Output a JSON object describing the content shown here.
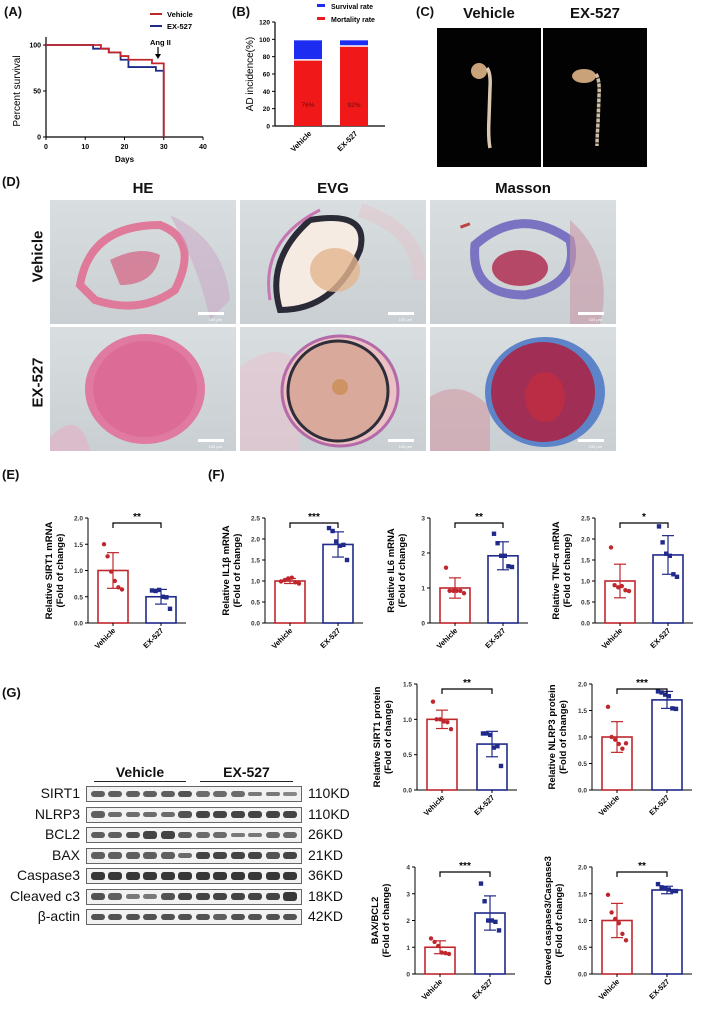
{
  "panels": {
    "A": {
      "label": "(A)"
    },
    "B": {
      "label": "(B)"
    },
    "C": {
      "label": "(C)",
      "headers": [
        "Vehicle",
        "EX-527"
      ]
    },
    "D": {
      "label": "(D)",
      "columns": [
        "HE",
        "EVG",
        "Masson"
      ],
      "rows": [
        "Vehicle",
        "EX-527"
      ],
      "scale_bar_text": "100 μm"
    },
    "E": {
      "label": "(E)"
    },
    "F": {
      "label": "(F)"
    },
    "G": {
      "label": "(G)"
    }
  },
  "colors": {
    "vehicle": "#c0272d",
    "ex527": "#1f2a8a",
    "survival": "#1c2cf0",
    "mortality": "#f01818"
  },
  "western_blot": {
    "groups": [
      "Vehicle",
      "EX-527"
    ],
    "rows": [
      {
        "protein": "SIRT1",
        "kd": "110KD"
      },
      {
        "protein": "NLRP3",
        "kd": "110KD"
      },
      {
        "protein": "BCL2",
        "kd": "26KD"
      },
      {
        "protein": "BAX",
        "kd": "21KD"
      },
      {
        "protein": "Caspase3",
        "kd": "36KD"
      },
      {
        "protein": "Cleaved c3",
        "kd": "18KD"
      },
      {
        "protein": "β-actin",
        "kd": "42KD"
      }
    ]
  },
  "chart_data": [
    {
      "id": "A",
      "type": "line",
      "title": "",
      "xlabel": "Days",
      "ylabel": "Percent survival",
      "xlim": [
        0,
        40
      ],
      "ylim": [
        0,
        100
      ],
      "xticks": [
        0,
        10,
        20,
        30,
        40
      ],
      "yticks": [
        0,
        50,
        100
      ],
      "legend": [
        "Vehicle",
        "EX-527"
      ],
      "annotation": "Ang II",
      "series": [
        {
          "name": "Vehicle",
          "steps": [
            [
              0,
              100
            ],
            [
              14,
              100
            ],
            [
              14,
              96
            ],
            [
              16,
              96
            ],
            [
              16,
              92
            ],
            [
              19,
              92
            ],
            [
              19,
              88
            ],
            [
              21,
              88
            ],
            [
              21,
              84
            ],
            [
              27,
              84
            ],
            [
              27,
              80
            ],
            [
              30,
              80
            ],
            [
              30,
              0
            ]
          ]
        },
        {
          "name": "EX-527",
          "steps": [
            [
              0,
              100
            ],
            [
              12,
              100
            ],
            [
              12,
              96
            ],
            [
              16,
              96
            ],
            [
              16,
              92
            ],
            [
              19,
              92
            ],
            [
              19,
              84
            ],
            [
              21,
              84
            ],
            [
              21,
              76
            ],
            [
              28,
              76
            ],
            [
              28,
              72
            ],
            [
              30,
              72
            ],
            [
              30,
              0
            ]
          ]
        }
      ]
    },
    {
      "id": "B",
      "type": "bar",
      "stacked": true,
      "categories": [
        "Vehicle",
        "EX-527"
      ],
      "ylabel": "AD incidence(%)",
      "ylim": [
        0,
        120
      ],
      "yticks": [
        0,
        20,
        40,
        60,
        80,
        100,
        120
      ],
      "legend": [
        "Survival rate",
        "Mortality rate"
      ],
      "series": [
        {
          "name": "Mortality rate",
          "values": [
            76,
            92
          ],
          "labels": [
            "76%",
            "92%"
          ]
        },
        {
          "name": "Survival rate",
          "values": [
            24,
            8
          ]
        }
      ]
    },
    {
      "id": "E",
      "type": "bar",
      "ylabel": "Relative SIRT1 mRNA\n(Fold of change)",
      "categories": [
        "Vehicle",
        "EX-527"
      ],
      "ylim": [
        0,
        2.0
      ],
      "yticks": [
        0,
        0.5,
        1.0,
        1.5,
        2.0
      ],
      "ytick_labels": [
        "0.0",
        "0.5",
        "1.0",
        "1.5",
        "2.0"
      ],
      "means": [
        1.0,
        0.5
      ],
      "sd": [
        0.34,
        0.14
      ],
      "significance": "**",
      "points": [
        [
          1.5,
          1.27,
          0.98,
          0.8,
          0.68,
          0.64
        ],
        [
          0.62,
          0.61,
          0.63,
          0.5,
          0.49,
          0.27
        ]
      ]
    },
    {
      "id": "F1",
      "type": "bar",
      "ylabel": "Relative IL1β mRNA\n(Fold of change)",
      "categories": [
        "Vehicle",
        "EX-527"
      ],
      "ylim": [
        0,
        2.5
      ],
      "yticks": [
        0,
        0.5,
        1.0,
        1.5,
        2.0,
        2.5
      ],
      "ytick_labels": [
        "0.0",
        "0.5",
        "1.0",
        "1.5",
        "2.0",
        "2.5"
      ],
      "means": [
        1.0,
        1.87
      ],
      "sd": [
        0.06,
        0.3
      ],
      "significance": "***",
      "points": [
        [
          0.99,
          1.02,
          1.06,
          1.08,
          0.97,
          0.94
        ],
        [
          2.26,
          2.19,
          1.94,
          1.84,
          1.86,
          1.5
        ]
      ]
    },
    {
      "id": "F2",
      "type": "bar",
      "ylabel": "Relative IL6 mRNA\n(Fold of change)",
      "categories": [
        "Vehicle",
        "EX-527"
      ],
      "ylim": [
        0,
        3
      ],
      "yticks": [
        0,
        1,
        2,
        3
      ],
      "ytick_labels": [
        "0",
        "1",
        "2",
        "3"
      ],
      "means": [
        1.0,
        1.92
      ],
      "sd": [
        0.29,
        0.4
      ],
      "significance": "**",
      "points": [
        [
          1.58,
          0.92,
          0.92,
          0.92,
          0.92,
          0.85
        ],
        [
          2.55,
          2.28,
          1.92,
          1.92,
          1.62,
          1.6
        ]
      ]
    },
    {
      "id": "F3",
      "type": "bar",
      "ylabel": "Relative TNF-α mRNA\n(Fold of change)",
      "categories": [
        "Vehicle",
        "EX-527"
      ],
      "ylim": [
        0,
        2.5
      ],
      "yticks": [
        0,
        0.5,
        1.0,
        1.5,
        2.0,
        2.5
      ],
      "ytick_labels": [
        "0.0",
        "0.5",
        "1.0",
        "1.5",
        "2.0",
        "2.5"
      ],
      "means": [
        1.0,
        1.62
      ],
      "sd": [
        0.4,
        0.46
      ],
      "significance": "*",
      "points": [
        [
          1.8,
          0.9,
          0.85,
          0.88,
          0.78,
          0.76
        ],
        [
          2.3,
          1.92,
          1.65,
          1.6,
          1.16,
          1.1
        ]
      ]
    },
    {
      "id": "G1",
      "type": "bar",
      "ylabel": "Relative SIRT1 protein\n(Fold of change)",
      "categories": [
        "Vehicle",
        "EX-527"
      ],
      "ylim": [
        0,
        1.5
      ],
      "yticks": [
        0,
        0.5,
        1.0,
        1.5
      ],
      "ytick_labels": [
        "0.0",
        "0.5",
        "1.0",
        "1.5"
      ],
      "means": [
        1.0,
        0.65
      ],
      "sd": [
        0.13,
        0.18
      ],
      "significance": "**",
      "points": [
        [
          1.25,
          1.0,
          1.0,
          0.97,
          0.96,
          0.86
        ],
        [
          0.8,
          0.8,
          0.78,
          0.6,
          0.62,
          0.34
        ]
      ]
    },
    {
      "id": "G2",
      "type": "bar",
      "ylabel": "Relative NLRP3 protein\n(Fold of change)",
      "categories": [
        "Vehicle",
        "EX-527"
      ],
      "ylim": [
        0,
        2.0
      ],
      "yticks": [
        0.0,
        0.5,
        1.0,
        1.5,
        2.0
      ],
      "ytick_labels": [
        "0.0",
        "0.5",
        "1.0",
        "1.5",
        "2.0"
      ],
      "means": [
        1.0,
        1.7
      ],
      "sd": [
        0.29,
        0.16
      ],
      "significance": "***",
      "points": [
        [
          1.57,
          1.0,
          0.95,
          0.87,
          0.78,
          0.88
        ],
        [
          1.86,
          1.84,
          1.8,
          1.77,
          1.54,
          1.53
        ]
      ]
    },
    {
      "id": "G3",
      "type": "bar",
      "ylabel": "BAX/BCL2\n(Fold of change)",
      "categories": [
        "Vehicle",
        "EX-527"
      ],
      "ylim": [
        0,
        4
      ],
      "yticks": [
        0,
        1,
        2,
        3,
        4
      ],
      "ytick_labels": [
        "0",
        "1",
        "2",
        "3",
        "4"
      ],
      "means": [
        1.0,
        2.28
      ],
      "sd": [
        0.24,
        0.64
      ],
      "significance": "***",
      "points": [
        [
          1.33,
          1.2,
          1.05,
          0.8,
          0.78,
          0.75
        ],
        [
          3.38,
          2.72,
          2.0,
          2.0,
          1.95,
          1.63
        ]
      ]
    },
    {
      "id": "G4",
      "type": "bar",
      "ylabel": "Cleaved caspase3/Caspase3\n(Fold of change)",
      "categories": [
        "Vehicle",
        "EX-527"
      ],
      "ylim": [
        0,
        2.0
      ],
      "yticks": [
        0.0,
        0.5,
        1.0,
        1.5,
        2.0
      ],
      "ytick_labels": [
        "0.0",
        "0.5",
        "1.0",
        "1.5",
        "2.0"
      ],
      "means": [
        1.0,
        1.57
      ],
      "sd": [
        0.32,
        0.07
      ],
      "significance": "**",
      "points": [
        [
          1.48,
          1.15,
          1.03,
          0.95,
          0.75,
          0.63
        ],
        [
          1.68,
          1.62,
          1.6,
          1.58,
          1.55,
          1.55
        ]
      ]
    }
  ]
}
